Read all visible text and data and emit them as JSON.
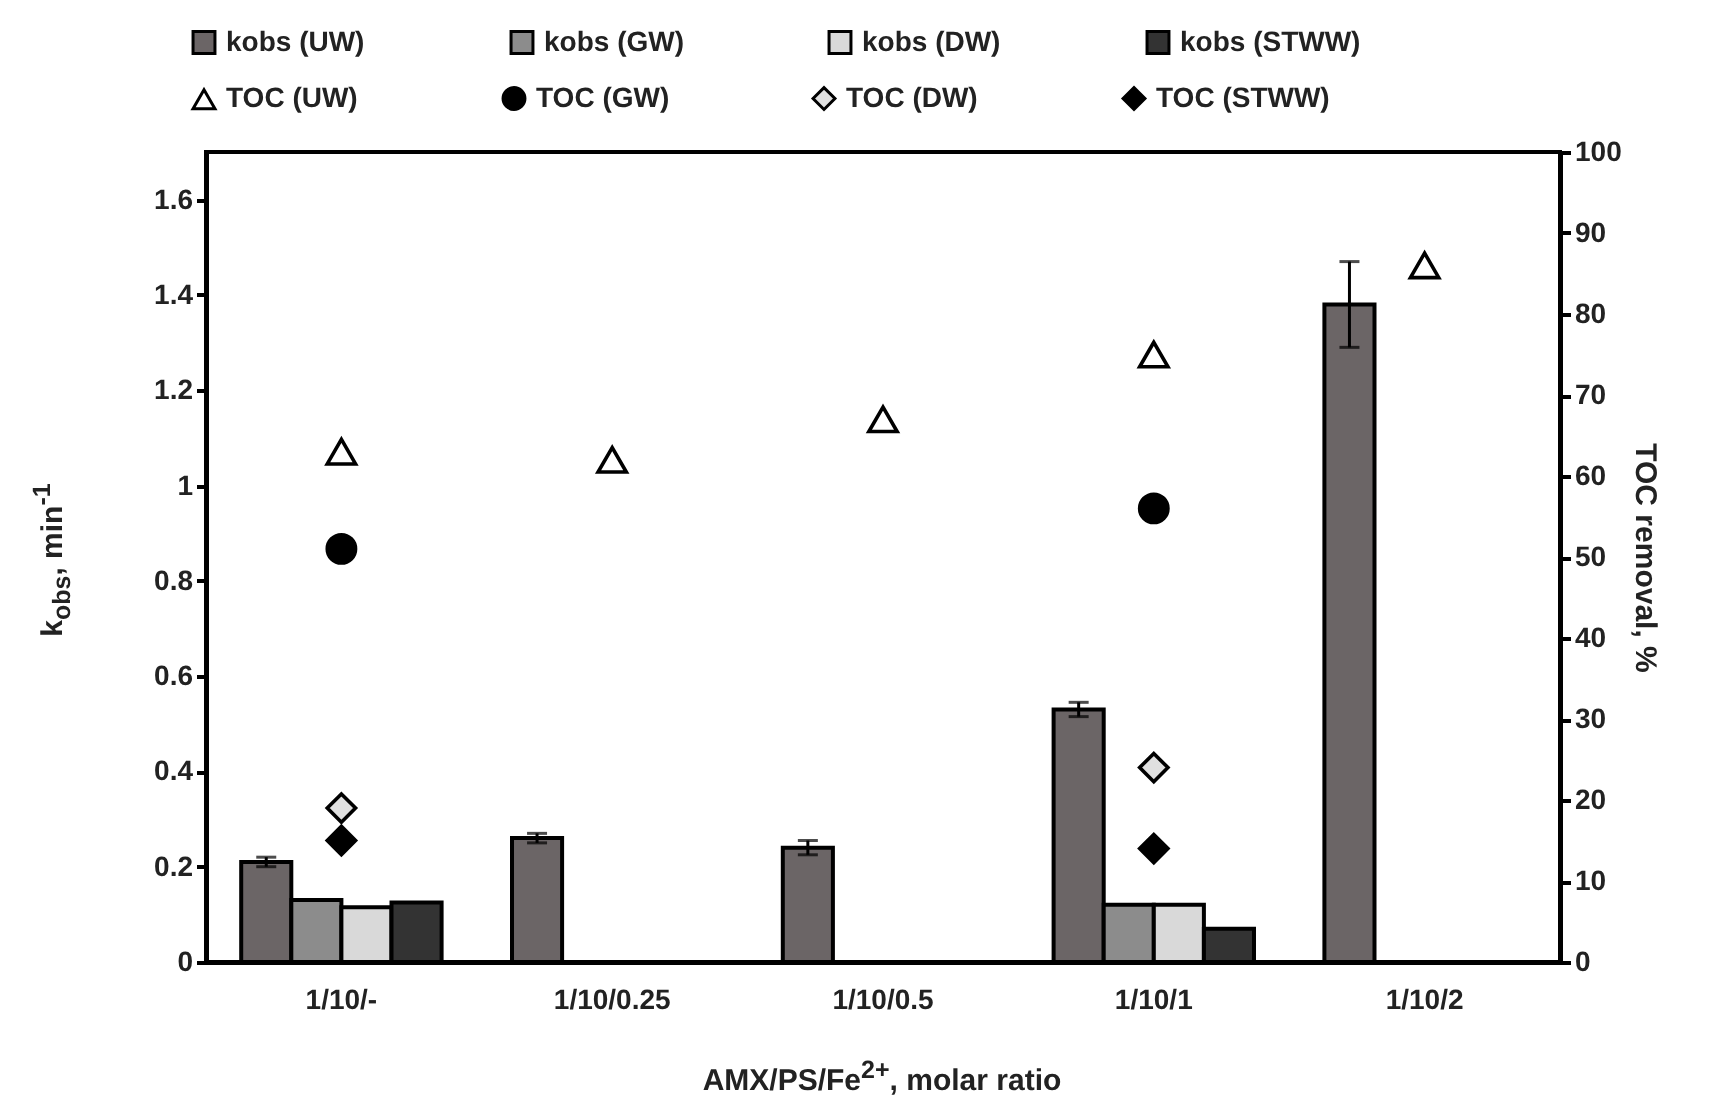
{
  "chart_data": {
    "type": "bar",
    "xlabel": "AMX/PS/Fe$^{2+}$, molar ratio",
    "ylabel": "k$_{obs}$, min$^{-1}$",
    "y2label": "TOC removal, %",
    "categories": [
      "1/10/-",
      "1/10/0.25",
      "1/10/0.5",
      "1/10/1",
      "1/10/2"
    ],
    "series": [
      {
        "name": "kobs (UW)",
        "color": "#6b6566",
        "values": [
          0.21,
          0.26,
          0.24,
          0.53,
          1.38
        ],
        "errors": [
          0.01,
          0.01,
          0.015,
          0.015,
          0.09
        ]
      },
      {
        "name": "kobs (GW)",
        "color": "#8c8c8c",
        "values": [
          0.13,
          null,
          null,
          0.12,
          null
        ]
      },
      {
        "name": "kobs (DW)",
        "color": "#d9d9d9",
        "values": [
          0.115,
          null,
          null,
          0.12,
          null
        ]
      },
      {
        "name": "kobs (STWW)",
        "color": "#333333",
        "values": [
          0.125,
          null,
          null,
          0.07,
          null
        ]
      },
      {
        "name": "TOC (UW)",
        "type": "scatter",
        "axis": "y2",
        "marker": "triangle",
        "color": "#ffffff",
        "values": [
          63,
          62,
          67,
          75,
          86
        ]
      },
      {
        "name": "TOC (GW)",
        "type": "scatter",
        "axis": "y2",
        "marker": "circle",
        "color": "#000000",
        "values": [
          51,
          null,
          null,
          56,
          null
        ]
      },
      {
        "name": "TOC (DW)",
        "type": "scatter",
        "axis": "y2",
        "marker": "diamond",
        "color": "#e0e0e0",
        "values": [
          19,
          null,
          null,
          24,
          null
        ]
      },
      {
        "name": "TOC (STWW)",
        "type": "scatter",
        "axis": "y2",
        "marker": "diamond",
        "color": "#000000",
        "values": [
          15,
          null,
          null,
          14,
          null
        ]
      }
    ],
    "ylim": [
      0,
      1.7
    ],
    "yticks": [
      0,
      0.2,
      0.4,
      0.6,
      0.8,
      1,
      1.2,
      1.4,
      1.6
    ],
    "y2lim": [
      0,
      100
    ],
    "y2ticks": [
      0,
      10,
      20,
      30,
      40,
      50,
      60,
      70,
      80,
      90,
      100
    ],
    "legend": "top",
    "grid": false
  }
}
